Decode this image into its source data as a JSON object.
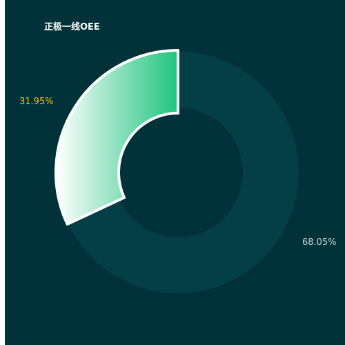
{
  "chart_data": {
    "type": "pie",
    "title": "正极一线OEE",
    "categories": [
      "",
      ""
    ],
    "values": [
      31.95,
      68.05
    ],
    "labels": [
      "31.95%",
      "68.05%"
    ],
    "colors": {
      "highlight_start": "#ffffff",
      "highlight_end": "#1fc47f",
      "rest": "#043f48",
      "panel_bg": "#023239",
      "label_highlight": "#f2c31a",
      "label_rest": "#c9d8da",
      "title": "#ffffff"
    }
  }
}
